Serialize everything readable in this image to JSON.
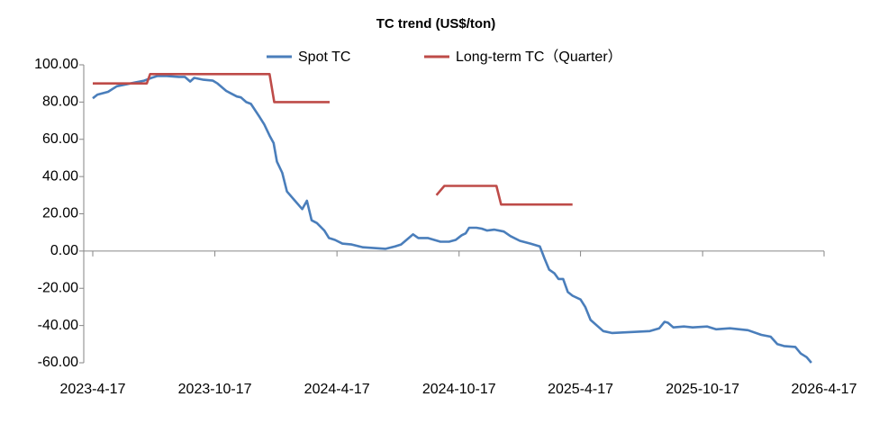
{
  "chart_data": {
    "type": "line",
    "title": "TC trend (US$/ton)",
    "legend": "top",
    "ylim": [
      -60,
      100
    ],
    "yticks": [
      {
        "value": -60,
        "label": "-60.00"
      },
      {
        "value": -40,
        "label": "-40.00"
      },
      {
        "value": -20,
        "label": "-20.00"
      },
      {
        "value": 0,
        "label": "0.00"
      },
      {
        "value": 20,
        "label": "20.00"
      },
      {
        "value": 40,
        "label": "40.00"
      },
      {
        "value": 60,
        "label": "60.00"
      },
      {
        "value": 80,
        "label": "80.00"
      },
      {
        "value": 100,
        "label": "100.00"
      }
    ],
    "xlim": [
      "2023-4-17",
      "2026-4-17"
    ],
    "xticks": [
      "2023-4-17",
      "2023-10-17",
      "2024-4-17",
      "2024-10-17",
      "2025-4-17",
      "2025-10-17",
      "2026-4-17"
    ],
    "series": [
      {
        "name": "Spot TC",
        "color": "#4a7ebb",
        "x": [
          "2023-4-17",
          "2023-4-24",
          "2023-5-10",
          "2023-5-23",
          "2023-6-6",
          "2023-6-19",
          "2023-7-3",
          "2023-7-14",
          "2023-7-23",
          "2023-8-6",
          "2023-8-24",
          "2023-9-2",
          "2023-9-10",
          "2023-9-16",
          "2023-9-30",
          "2023-10-14",
          "2023-10-21",
          "2023-11-3",
          "2023-11-19",
          "2023-11-25",
          "2023-12-3",
          "2023-12-10",
          "2023-12-23",
          "2023-12-30",
          "2024-1-7",
          "2024-1-13",
          "2024-1-18",
          "2024-1-26",
          "2024-2-2",
          "2024-2-14",
          "2024-2-25",
          "2024-3-3",
          "2024-3-10",
          "2024-3-18",
          "2024-3-29",
          "2024-4-5",
          "2024-4-14",
          "2024-4-25",
          "2024-5-9",
          "2024-5-26",
          "2024-6-29",
          "2024-7-13",
          "2024-7-22",
          "2024-8-1",
          "2024-8-9",
          "2024-8-17",
          "2024-8-31",
          "2024-9-19",
          "2024-10-2",
          "2024-10-12",
          "2024-10-21",
          "2024-10-27",
          "2024-11-1",
          "2024-11-12",
          "2024-11-20",
          "2024-11-28",
          "2024-12-9",
          "2024-12-23",
          "2025-1-2",
          "2025-1-16",
          "2025-2-1",
          "2025-2-15",
          "2025-2-22",
          "2025-3-1",
          "2025-3-9",
          "2025-3-15",
          "2025-3-22",
          "2025-3-29",
          "2025-4-5",
          "2025-4-17",
          "2025-4-24",
          "2025-5-2",
          "2025-5-21",
          "2025-6-3",
          "2025-6-30",
          "2025-7-30",
          "2025-8-13",
          "2025-8-21",
          "2025-8-26",
          "2025-9-3",
          "2025-9-19",
          "2025-10-2",
          "2025-10-24",
          "2025-11-6",
          "2025-11-27",
          "2025-12-24",
          "2026-1-13",
          "2026-1-27",
          "2026-2-6",
          "2026-2-16",
          "2026-3-5",
          "2026-3-13",
          "2026-3-22",
          "2026-3-29"
        ],
        "values": [
          82,
          84,
          85.5,
          88.5,
          89.5,
          90.5,
          91.5,
          93,
          94,
          94,
          93.5,
          93.5,
          91,
          93,
          92,
          91.5,
          90,
          86,
          83,
          82.5,
          80,
          79,
          72,
          68,
          62,
          58,
          48,
          42,
          32,
          27,
          22.5,
          27,
          16.5,
          15,
          11,
          7,
          6,
          4,
          3.5,
          2,
          1.2,
          2.5,
          3.5,
          6.5,
          9,
          7,
          7,
          5,
          5,
          6,
          8.5,
          9.5,
          12.5,
          12.5,
          12,
          11,
          11.5,
          10.5,
          8,
          5.5,
          4,
          2.5,
          -4,
          -10,
          -12,
          -15,
          -15,
          -22,
          -24,
          -26,
          -30,
          -37,
          -43,
          -44,
          -43.5,
          -43,
          -41.5,
          -38,
          -38.5,
          -41,
          -40.5,
          -41,
          -40.5,
          -42,
          -41.5,
          -42.5,
          -45,
          -46,
          -50,
          -51,
          -51.5,
          -55,
          -57,
          -60
        ]
      },
      {
        "name": "Long-term TC（Quarter）",
        "color": "#be4b48",
        "x": [
          "2023-4-17",
          "2023-7-7",
          "2023-7-12",
          "2024-1-7",
          "2024-1-14",
          "2024-4-6",
          "2024-7-4",
          "2024-9-13",
          "2024-9-25",
          "2024-12-12",
          "2024-12-19",
          "2025-4-5"
        ],
        "values": [
          90,
          90,
          95,
          95,
          80,
          80,
          null,
          30,
          35,
          35,
          25,
          25
        ]
      }
    ]
  }
}
